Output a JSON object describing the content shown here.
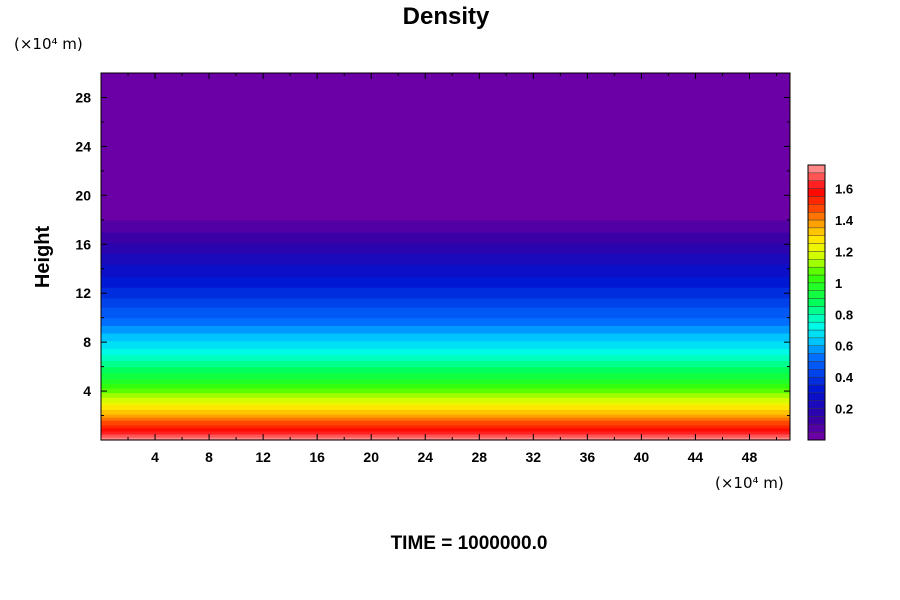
{
  "chart_data": {
    "type": "heatmap",
    "title": "Density",
    "ylabel": "Height",
    "xlabel": "",
    "x_unit": "(×10⁴ m)",
    "y_unit": "(×10⁴ m)",
    "footer": "TIME = 1000000.0",
    "xlim": [
      0,
      51
    ],
    "ylim": [
      0,
      30
    ],
    "x_ticks": [
      4,
      8,
      12,
      16,
      20,
      24,
      28,
      32,
      36,
      40,
      44,
      48
    ],
    "x_tick_labels": [
      "4",
      "8",
      "12",
      "16",
      "20",
      "24",
      "28",
      "32",
      "36",
      "40",
      "44",
      "48"
    ],
    "y_ticks": [
      4,
      8,
      12,
      16,
      20,
      24,
      28
    ],
    "y_tick_labels": [
      "4",
      "8",
      "12",
      "16",
      "20",
      "24",
      "28"
    ],
    "colorbar": {
      "range": [
        0,
        1.75
      ],
      "ticks": [
        0.2,
        0.4,
        0.6,
        0.8,
        1.0,
        1.2,
        1.4,
        1.6
      ],
      "tick_labels": [
        "0.2",
        "0.4",
        "0.6",
        "0.8",
        "1",
        "1.2",
        "1.4",
        "1.6"
      ]
    },
    "profile": {
      "description_free": true,
      "heights": [
        0,
        1,
        2,
        3,
        4,
        5,
        6,
        7,
        8,
        9,
        10,
        11,
        12,
        13,
        14,
        15,
        16,
        17,
        18,
        19.5,
        30
      ],
      "density": [
        1.75,
        1.55,
        1.38,
        1.22,
        1.08,
        0.95,
        0.85,
        0.75,
        0.66,
        0.58,
        0.5,
        0.44,
        0.38,
        0.32,
        0.27,
        0.21,
        0.16,
        0.1,
        0.05,
        0.01,
        0.01
      ]
    }
  }
}
